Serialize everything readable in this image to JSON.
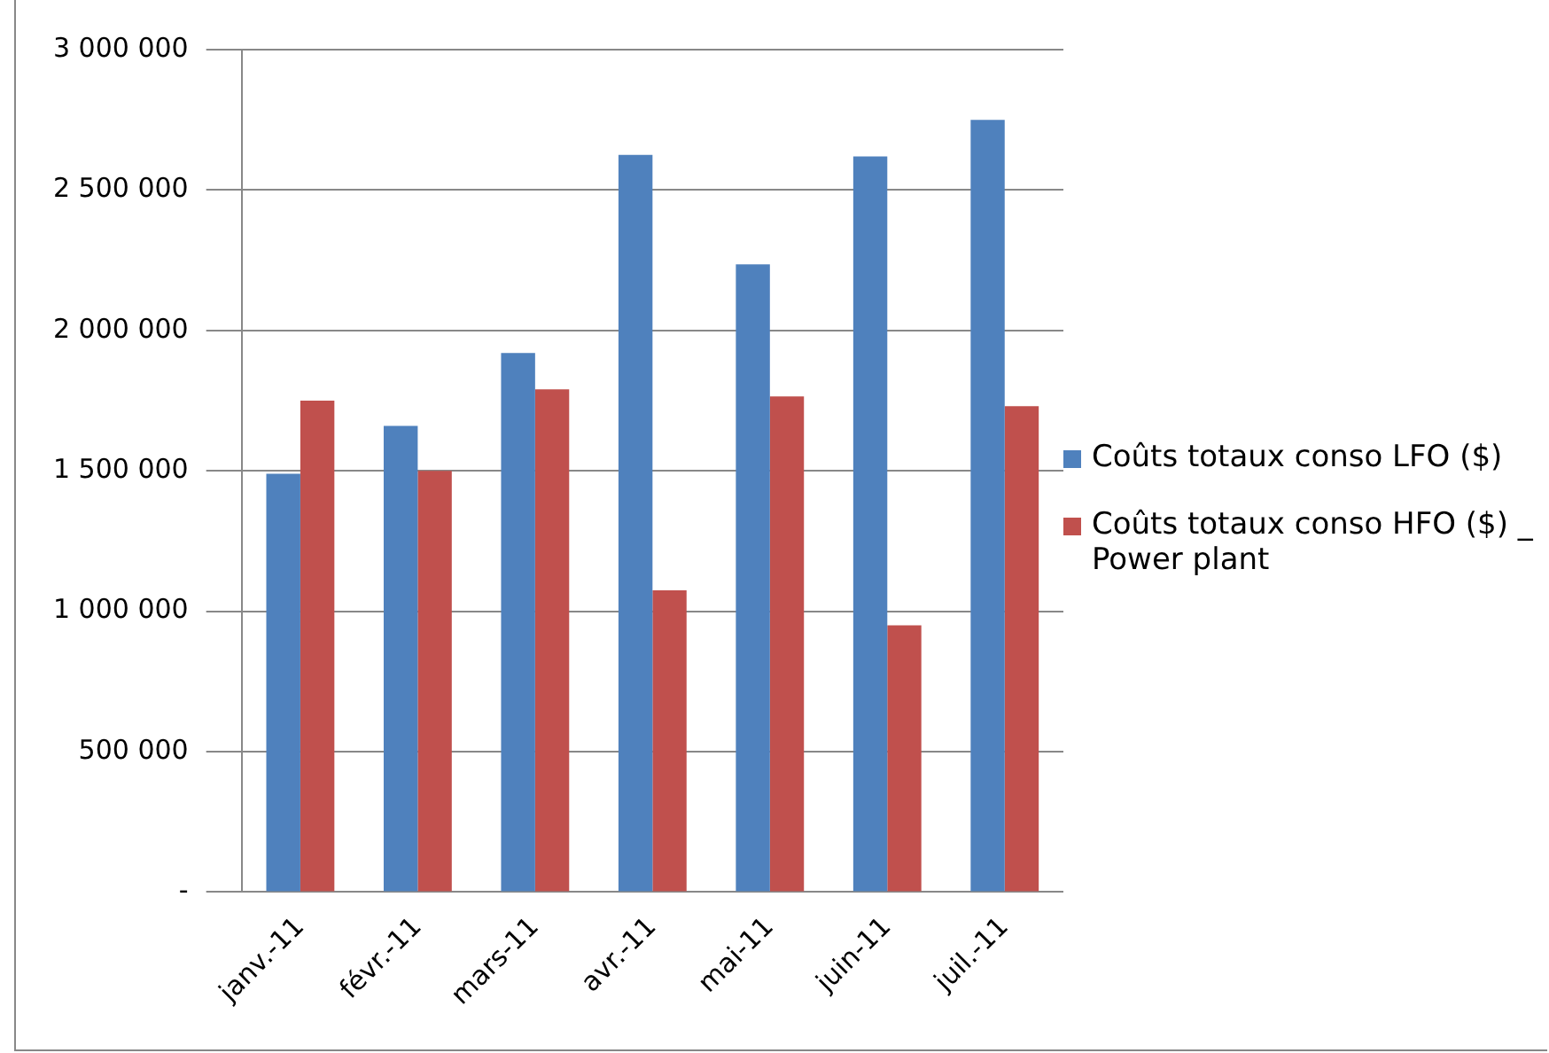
{
  "chart_data": {
    "type": "bar",
    "categories": [
      "janv.-11",
      "févr.-11",
      "mars-11",
      "avr.-11",
      "mai-11",
      "juin-11",
      "juil.-11"
    ],
    "series": [
      {
        "name": "Coûts totaux conso LFO ($)",
        "color": "#4f81bd",
        "values": [
          1490000,
          1660000,
          1920000,
          2625000,
          2235000,
          2620000,
          2750000
        ]
      },
      {
        "name": "Coûts totaux conso HFO ($) _ Power plant",
        "color": "#c0504d",
        "values": [
          1750000,
          1500000,
          1790000,
          1075000,
          1765000,
          950000,
          1730000
        ]
      }
    ],
    "ylim": [
      0,
      3000000
    ],
    "yticks": [
      {
        "value": 0,
        "label": "-"
      },
      {
        "value": 500000,
        "label": "500 000"
      },
      {
        "value": 1000000,
        "label": "1 000 000"
      },
      {
        "value": 1500000,
        "label": "1 500 000"
      },
      {
        "value": 2000000,
        "label": "2 000 000"
      },
      {
        "value": 2500000,
        "label": "2 500 000"
      },
      {
        "value": 3000000,
        "label": "3 000 000"
      }
    ],
    "grid": "y",
    "legend": "right"
  }
}
